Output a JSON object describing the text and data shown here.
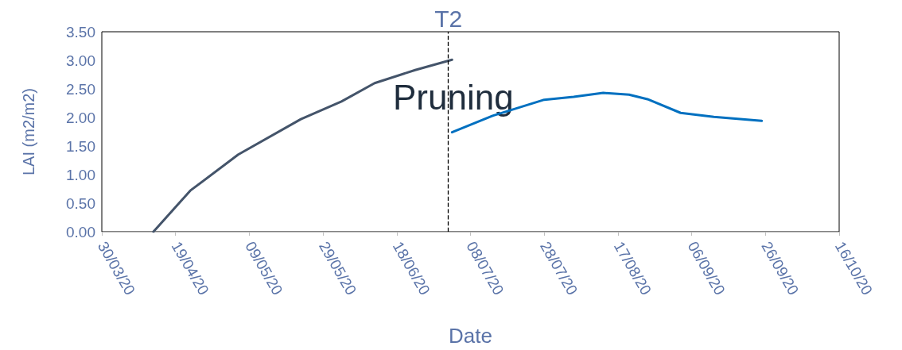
{
  "chart_data": {
    "type": "line",
    "xlabel": "Date",
    "ylabel": "LAI (m2/m2)",
    "xlim": [
      "2020-03-30",
      "2020-10-16"
    ],
    "xticks": [
      {
        "value": "2020-03-30",
        "label": "30/03/20"
      },
      {
        "value": "2020-04-19",
        "label": "19/04/20"
      },
      {
        "value": "2020-05-09",
        "label": "09/05/20"
      },
      {
        "value": "2020-05-29",
        "label": "29/05/20"
      },
      {
        "value": "2020-06-18",
        "label": "18/06/20"
      },
      {
        "value": "2020-07-08",
        "label": "08/07/20"
      },
      {
        "value": "2020-07-28",
        "label": "28/07/20"
      },
      {
        "value": "2020-08-17",
        "label": "17/08/20"
      },
      {
        "value": "2020-09-06",
        "label": "06/09/20"
      },
      {
        "value": "2020-09-26",
        "label": "26/09/20"
      },
      {
        "value": "2020-10-16",
        "label": "16/10/20"
      }
    ],
    "ylim": [
      0,
      3.5
    ],
    "yticks": [
      {
        "value": 0,
        "label": "0.00"
      },
      {
        "value": 0.5,
        "label": "0.50"
      },
      {
        "value": 1,
        "label": "1.00"
      },
      {
        "value": 1.5,
        "label": "1.50"
      },
      {
        "value": 2,
        "label": "2.00"
      },
      {
        "value": 2.5,
        "label": "2.50"
      },
      {
        "value": 3,
        "label": "3.00"
      },
      {
        "value": 3.5,
        "label": "3.50"
      }
    ],
    "grid": false,
    "marker": "none",
    "line_style": "solid",
    "series": [
      {
        "color": "#44546a",
        "x": [
          "2020-04-13",
          "2020-04-23",
          "2020-05-06",
          "2020-05-23",
          "2020-06-03",
          "2020-06-12",
          "2020-06-23",
          "2020-07-03"
        ],
        "values": [
          0,
          0.72,
          1.35,
          1.97,
          2.28,
          2.6,
          2.83,
          3.01
        ]
      },
      {
        "color": "#0070c0",
        "x": [
          "2020-07-03",
          "2020-07-14",
          "2020-07-28",
          "2020-08-05",
          "2020-08-13",
          "2020-08-20",
          "2020-08-25",
          "2020-09-03",
          "2020-09-12",
          "2020-09-25"
        ],
        "values": [
          1.74,
          2.03,
          2.31,
          2.36,
          2.43,
          2.4,
          2.32,
          2.08,
          2.01,
          1.94
        ]
      }
    ],
    "ref_lines": [
      {
        "axis": "x",
        "value": "2020-07-02",
        "label": "T2",
        "color": "#000000",
        "line_style": "dashed"
      }
    ],
    "annotations": [
      "Pruning"
    ]
  }
}
